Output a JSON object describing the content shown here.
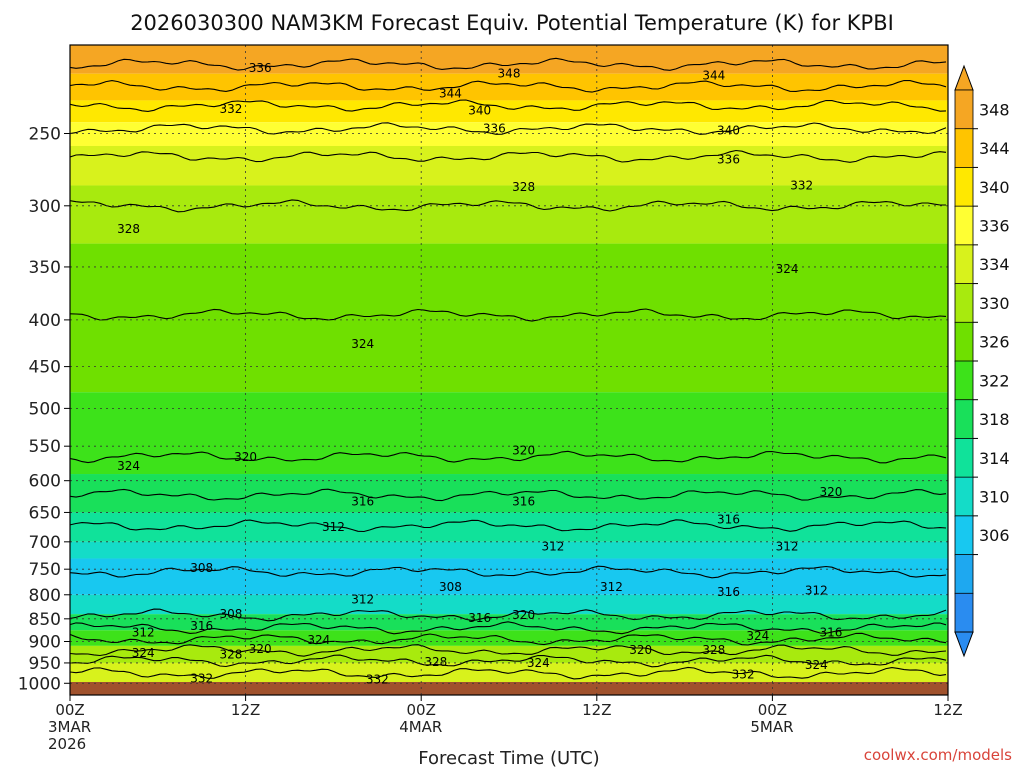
{
  "chart_data": {
    "type": "heatmap",
    "title": "2026030300 NAM3KM Forecast Equiv. Potential Temperature (K) for KPBI",
    "xlabel": "Forecast Time (UTC)",
    "ylabel": "",
    "credit": "coolwx.com/models",
    "x_hours_range": [
      0,
      60
    ],
    "x_ticks": [
      {
        "hour": 0,
        "lines": [
          "00Z",
          "3MAR",
          "2026"
        ]
      },
      {
        "hour": 12,
        "lines": [
          "12Z"
        ]
      },
      {
        "hour": 24,
        "lines": [
          "00Z",
          "4MAR"
        ]
      },
      {
        "hour": 36,
        "lines": [
          "12Z"
        ]
      },
      {
        "hour": 48,
        "lines": [
          "00Z",
          "5MAR"
        ]
      },
      {
        "hour": 60,
        "lines": [
          "12Z"
        ]
      }
    ],
    "y_scale": "log",
    "y_range": [
      1030,
      200
    ],
    "y_ticks": [
      250,
      300,
      350,
      400,
      450,
      500,
      550,
      600,
      650,
      700,
      750,
      800,
      850,
      900,
      950,
      1000
    ],
    "grid": true,
    "colorbar": {
      "ticks": [
        348,
        344,
        340,
        336,
        334,
        330,
        326,
        322,
        318,
        314,
        310,
        306
      ],
      "colors": [
        "#f5a623",
        "#ffc400",
        "#ffe800",
        "#ffff33",
        "#d8f21c",
        "#a8ea0e",
        "#6fe000",
        "#3de21a",
        "#19e05a",
        "#10e29a",
        "#14dcc8",
        "#18c8f0",
        "#1ea8f0",
        "#2a8cf0"
      ]
    },
    "ground_color": "#a0522d",
    "contour_levels": [
      {
        "value": 348,
        "p": 210
      },
      {
        "value": 344,
        "p": 222
      },
      {
        "value": 340,
        "p": 233
      },
      {
        "value": 336,
        "p": 247
      },
      {
        "value": 332,
        "p": 265
      },
      {
        "value": 328,
        "p": 300
      },
      {
        "value": 324,
        "p": 395
      },
      {
        "value": 320,
        "p": 565
      },
      {
        "value": 316,
        "p": 622
      },
      {
        "value": 312,
        "p": 672
      },
      {
        "value": 308,
        "p": 755
      },
      {
        "value": 312,
        "p": 842
      },
      {
        "value": 316,
        "p": 870
      },
      {
        "value": 320,
        "p": 895
      },
      {
        "value": 324,
        "p": 920
      },
      {
        "value": 328,
        "p": 945
      },
      {
        "value": 332,
        "p": 975
      }
    ],
    "fill_bands": [
      {
        "p_top": 200,
        "p_bot": 215,
        "color": "#f5a623"
      },
      {
        "p_top": 215,
        "p_bot": 230,
        "color": "#ffc400"
      },
      {
        "p_top": 230,
        "p_bot": 243,
        "color": "#ffe800"
      },
      {
        "p_top": 243,
        "p_bot": 258,
        "color": "#ffff33"
      },
      {
        "p_top": 258,
        "p_bot": 285,
        "color": "#d8f21c"
      },
      {
        "p_top": 285,
        "p_bot": 330,
        "color": "#a8ea0e"
      },
      {
        "p_top": 330,
        "p_bot": 480,
        "color": "#6fe000"
      },
      {
        "p_top": 480,
        "p_bot": 590,
        "color": "#3de21a"
      },
      {
        "p_top": 590,
        "p_bot": 650,
        "color": "#19e05a"
      },
      {
        "p_top": 650,
        "p_bot": 700,
        "color": "#10e29a"
      },
      {
        "p_top": 700,
        "p_bot": 730,
        "color": "#14dcc8"
      },
      {
        "p_top": 730,
        "p_bot": 800,
        "color": "#18c8f0"
      },
      {
        "p_top": 800,
        "p_bot": 840,
        "color": "#14dcc8"
      },
      {
        "p_top": 840,
        "p_bot": 875,
        "color": "#19e05a"
      },
      {
        "p_top": 875,
        "p_bot": 910,
        "color": "#3de21a"
      },
      {
        "p_top": 910,
        "p_bot": 950,
        "color": "#a8ea0e"
      },
      {
        "p_top": 950,
        "p_bot": 1030,
        "color": "#d8f21c"
      }
    ],
    "contour_labels": [
      {
        "text": "336",
        "hour": 13,
        "p": 212
      },
      {
        "text": "348",
        "hour": 30,
        "p": 215
      },
      {
        "text": "344",
        "hour": 26,
        "p": 226
      },
      {
        "text": "344",
        "hour": 44,
        "p": 216
      },
      {
        "text": "340",
        "hour": 28,
        "p": 236
      },
      {
        "text": "332",
        "hour": 11,
        "p": 235
      },
      {
        "text": "336",
        "hour": 29,
        "p": 247
      },
      {
        "text": "340",
        "hour": 45,
        "p": 248
      },
      {
        "text": "336",
        "hour": 45,
        "p": 267
      },
      {
        "text": "328",
        "hour": 31,
        "p": 286
      },
      {
        "text": "332",
        "hour": 50,
        "p": 285
      },
      {
        "text": "328",
        "hour": 4,
        "p": 318
      },
      {
        "text": "324",
        "hour": 49,
        "p": 352
      },
      {
        "text": "324",
        "hour": 20,
        "p": 425
      },
      {
        "text": "320",
        "hour": 12,
        "p": 565
      },
      {
        "text": "320",
        "hour": 31,
        "p": 556
      },
      {
        "text": "324",
        "hour": 4,
        "p": 578
      },
      {
        "text": "320",
        "hour": 52,
        "p": 617
      },
      {
        "text": "316",
        "hour": 20,
        "p": 632
      },
      {
        "text": "316",
        "hour": 31,
        "p": 632
      },
      {
        "text": "316",
        "hour": 45,
        "p": 662
      },
      {
        "text": "312",
        "hour": 18,
        "p": 674
      },
      {
        "text": "312",
        "hour": 33,
        "p": 708
      },
      {
        "text": "312",
        "hour": 49,
        "p": 708
      },
      {
        "text": "308",
        "hour": 9,
        "p": 748
      },
      {
        "text": "308",
        "hour": 26,
        "p": 784
      },
      {
        "text": "312",
        "hour": 37,
        "p": 784
      },
      {
        "text": "316",
        "hour": 45,
        "p": 794
      },
      {
        "text": "312",
        "hour": 51,
        "p": 791
      },
      {
        "text": "312",
        "hour": 20,
        "p": 810
      },
      {
        "text": "308",
        "hour": 11,
        "p": 840
      },
      {
        "text": "316",
        "hour": 9,
        "p": 865
      },
      {
        "text": "320",
        "hour": 31,
        "p": 842
      },
      {
        "text": "316",
        "hour": 28,
        "p": 848
      },
      {
        "text": "312",
        "hour": 5,
        "p": 880
      },
      {
        "text": "324",
        "hour": 17,
        "p": 897
      },
      {
        "text": "324",
        "hour": 5,
        "p": 927
      },
      {
        "text": "328",
        "hour": 11,
        "p": 930
      },
      {
        "text": "320",
        "hour": 13,
        "p": 917
      },
      {
        "text": "320",
        "hour": 39,
        "p": 920
      },
      {
        "text": "328",
        "hour": 44,
        "p": 920
      },
      {
        "text": "324",
        "hour": 47,
        "p": 888
      },
      {
        "text": "316",
        "hour": 52,
        "p": 880
      },
      {
        "text": "324",
        "hour": 32,
        "p": 950
      },
      {
        "text": "328",
        "hour": 25,
        "p": 948
      },
      {
        "text": "324",
        "hour": 51,
        "p": 955
      },
      {
        "text": "332",
        "hour": 9,
        "p": 988
      },
      {
        "text": "332",
        "hour": 21,
        "p": 990
      },
      {
        "text": "332",
        "hour": 46,
        "p": 978
      }
    ]
  }
}
